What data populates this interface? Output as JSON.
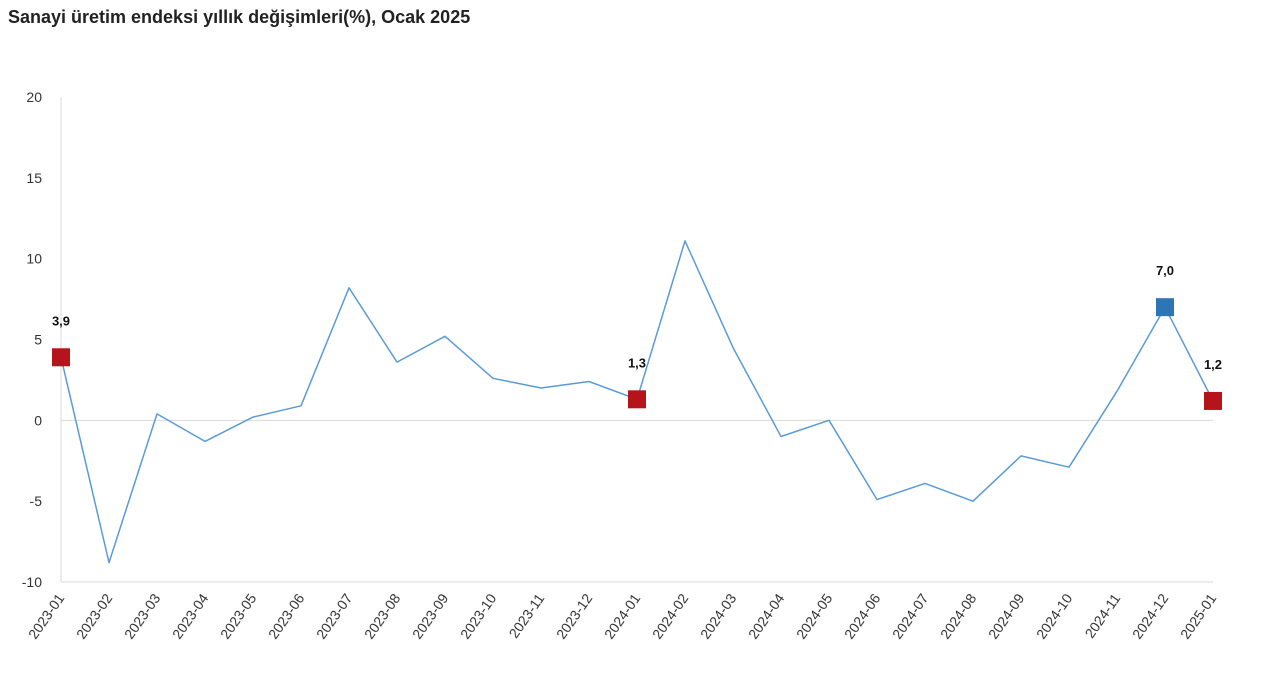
{
  "chart_data": {
    "type": "line",
    "title": "Sanayi üretim endeksi yıllık değişimleri(%), Ocak 2025",
    "xlabel": "",
    "ylabel": "",
    "ylim": [
      -10,
      20
    ],
    "yticks": [
      20,
      15,
      10,
      5,
      0,
      -5,
      -10
    ],
    "grid": false,
    "categories": [
      "2023-01",
      "2023-02",
      "2023-03",
      "2023-04",
      "2023-05",
      "2023-06",
      "2023-07",
      "2023-08",
      "2023-09",
      "2023-10",
      "2023-11",
      "2023-12",
      "2024-01",
      "2024-02",
      "2024-03",
      "2024-04",
      "2024-05",
      "2024-06",
      "2024-07",
      "2024-08",
      "2024-09",
      "2024-10",
      "2024-11",
      "2024-12",
      "2025-01"
    ],
    "series": [
      {
        "values": [
          3.9,
          -8.8,
          0.4,
          -1.3,
          0.2,
          0.9,
          8.2,
          3.6,
          5.2,
          2.6,
          2.0,
          2.4,
          1.3,
          11.1,
          4.5,
          -1.0,
          0.0,
          -4.9,
          -3.9,
          -5.0,
          -2.2,
          -2.9,
          1.8,
          7.0,
          1.2
        ],
        "color": "#5b9bd5"
      }
    ],
    "highlighted_points": [
      {
        "index": 0,
        "label": "3,9",
        "color": "#b5141b"
      },
      {
        "index": 12,
        "label": "1,3",
        "color": "#b5141b"
      },
      {
        "index": 23,
        "label": "7,0",
        "color": "#2e75b6"
      },
      {
        "index": 24,
        "label": "1,2",
        "color": "#b5141b"
      }
    ]
  }
}
